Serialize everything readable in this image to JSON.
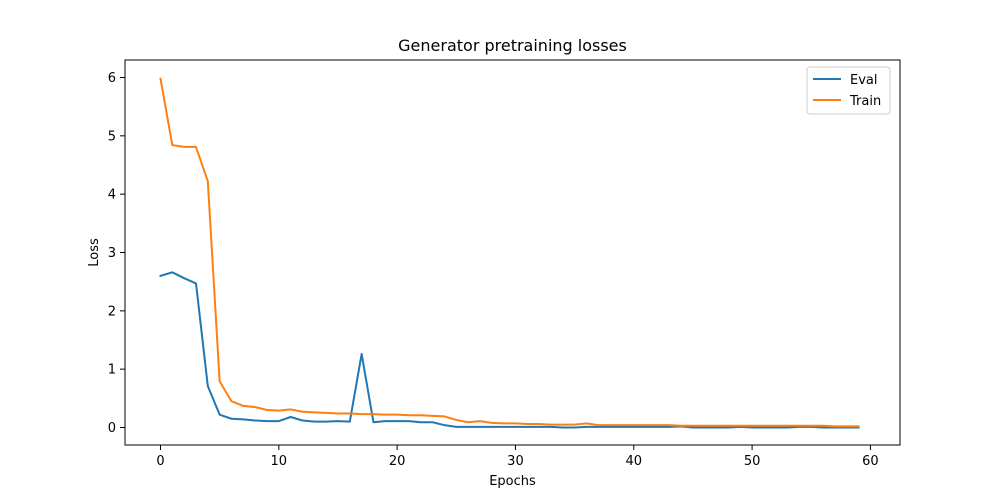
{
  "chart_data": {
    "type": "line",
    "title": "Generator pretraining losses",
    "xlabel": "Epochs",
    "ylabel": "Loss",
    "xlim": [
      -3,
      62.5
    ],
    "ylim": [
      -0.3,
      6.3
    ],
    "xticks": [
      0,
      10,
      20,
      30,
      40,
      50,
      60
    ],
    "yticks": [
      0,
      1,
      2,
      3,
      4,
      5,
      6
    ],
    "grid": false,
    "legend_position": "top-right",
    "series": [
      {
        "name": "Eval",
        "color": "#1f77b4",
        "x": [
          0,
          1,
          2,
          3,
          4,
          5,
          6,
          7,
          8,
          9,
          10,
          11,
          12,
          13,
          14,
          15,
          16,
          17,
          18,
          19,
          20,
          21,
          22,
          23,
          24,
          25,
          26,
          27,
          28,
          29,
          30,
          31,
          32,
          33,
          34,
          35,
          36,
          37,
          38,
          39,
          40,
          41,
          42,
          43,
          44,
          45,
          46,
          47,
          48,
          49,
          50,
          51,
          52,
          53,
          54,
          55,
          56,
          57,
          58,
          59
        ],
        "values": [
          2.6,
          2.66,
          2.56,
          2.47,
          0.71,
          0.22,
          0.15,
          0.14,
          0.12,
          0.11,
          0.11,
          0.18,
          0.12,
          0.1,
          0.1,
          0.11,
          0.1,
          1.26,
          0.09,
          0.11,
          0.11,
          0.11,
          0.09,
          0.09,
          0.04,
          0.01,
          0.01,
          0.01,
          0.01,
          0.01,
          0.01,
          0.01,
          0.01,
          0.01,
          0.0,
          0.0,
          0.01,
          0.01,
          0.01,
          0.01,
          0.01,
          0.01,
          0.01,
          0.01,
          0.02,
          0.0,
          0.0,
          0.0,
          0.0,
          0.01,
          0.0,
          0.0,
          0.0,
          0.0,
          0.01,
          0.01,
          0.0,
          0.0,
          0.0,
          0.0
        ]
      },
      {
        "name": "Train",
        "color": "#ff7f0e",
        "x": [
          0,
          1,
          2,
          3,
          4,
          5,
          6,
          7,
          8,
          9,
          10,
          11,
          12,
          13,
          14,
          15,
          16,
          17,
          18,
          19,
          20,
          21,
          22,
          23,
          24,
          25,
          26,
          27,
          28,
          29,
          30,
          31,
          32,
          33,
          34,
          35,
          36,
          37,
          38,
          39,
          40,
          41,
          42,
          43,
          44,
          45,
          46,
          47,
          48,
          49,
          50,
          51,
          52,
          53,
          54,
          55,
          56,
          57,
          58,
          59
        ],
        "values": [
          5.98,
          4.84,
          4.81,
          4.81,
          4.22,
          0.79,
          0.45,
          0.37,
          0.35,
          0.3,
          0.29,
          0.31,
          0.27,
          0.26,
          0.25,
          0.24,
          0.24,
          0.23,
          0.23,
          0.22,
          0.22,
          0.21,
          0.21,
          0.2,
          0.19,
          0.13,
          0.09,
          0.11,
          0.08,
          0.07,
          0.07,
          0.06,
          0.06,
          0.05,
          0.05,
          0.05,
          0.07,
          0.04,
          0.04,
          0.04,
          0.04,
          0.04,
          0.04,
          0.04,
          0.03,
          0.03,
          0.03,
          0.03,
          0.03,
          0.03,
          0.03,
          0.03,
          0.03,
          0.03,
          0.03,
          0.03,
          0.03,
          0.02,
          0.02,
          0.02
        ]
      }
    ]
  }
}
